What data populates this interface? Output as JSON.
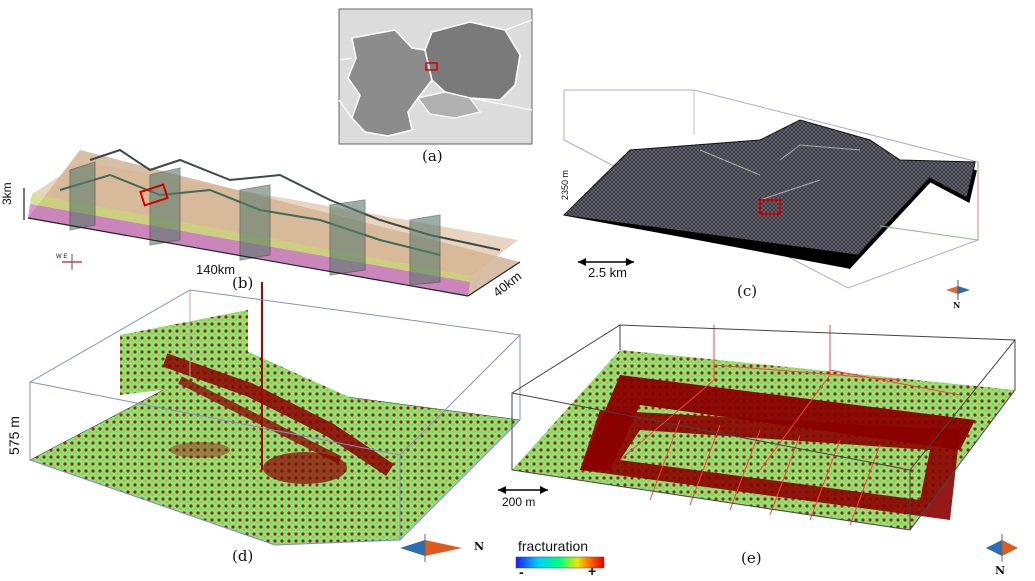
{
  "panels": {
    "a": {
      "caption": "(a)"
    },
    "b": {
      "caption": "(b)",
      "height_label": "3km",
      "length_label": "140km",
      "width_label": "40km",
      "compass": "W  E"
    },
    "c": {
      "caption": "(c)",
      "height_label": "2350 m",
      "scale_label": "2.5 km",
      "north": "N"
    },
    "d": {
      "caption": "(d)",
      "height_label": "575 m",
      "north": "N"
    },
    "e": {
      "caption": "(e)",
      "scale_label": "200 m",
      "north": "N"
    }
  },
  "legend": {
    "title": "fracturation",
    "min_label": "-",
    "max_label": "+",
    "colors": [
      "#1a1aff",
      "#00d0ff",
      "#00ff80",
      "#e8e800",
      "#ff6000",
      "#e00000"
    ]
  },
  "colors": {
    "fracture_dark": "#8b0000",
    "fracture_bg": "#7fe87f",
    "map_land": "#d2d2d2",
    "map_focus": "#8a8a8a",
    "marker": "#d40000"
  }
}
